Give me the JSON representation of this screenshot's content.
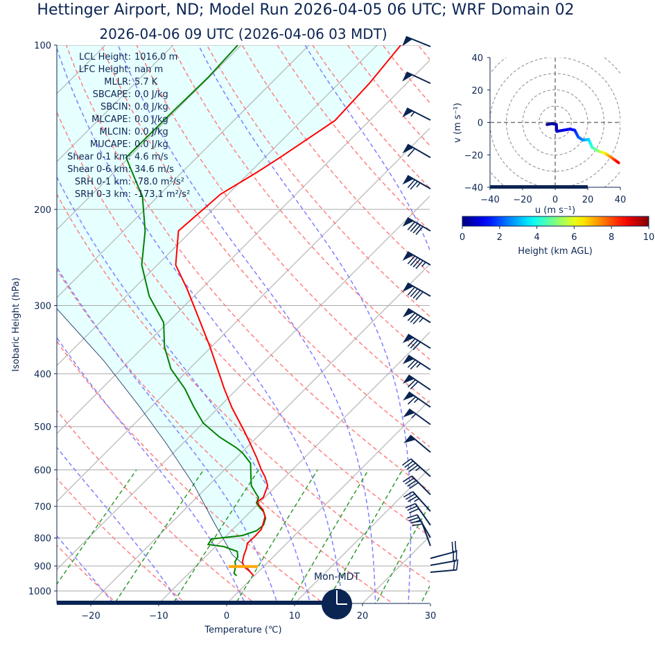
{
  "title": "Hettinger Airport, ND; Model Run 2026-04-05 06 UTC; WRF Domain 02",
  "subtitle": "2026-04-06 09 UTC  (2026-04-06 03 MDT)",
  "parameters": [
    {
      "label": "LCL Height:",
      "value": "1016.0 m"
    },
    {
      "label": "LFC Height:",
      "value": "nan m"
    },
    {
      "label": "MLLR:",
      "value": "5.7 K"
    },
    {
      "label": "SBCAPE:",
      "value": "0.0 J/kg"
    },
    {
      "label": "SBCIN:",
      "value": "0.0 J/kg"
    },
    {
      "label": "MLCAPE:",
      "value": "0.0 J/kg"
    },
    {
      "label": "MLCIN:",
      "value": "0.0 J/kg"
    },
    {
      "label": "MUCAPE:",
      "value": "0.0 J/kg"
    },
    {
      "label": "Shear 0-1 km:",
      "value": "4.6 m/s"
    },
    {
      "label": "Shear 0-6 km:",
      "value": "34.6 m/s"
    },
    {
      "label": "SRH 0-1 km:",
      "value": "-78.0 m²/s²"
    },
    {
      "label": "SRH 0-3 km:",
      "value": "-173.1 m²/s²"
    }
  ],
  "timeline": {
    "clock_label": "Mon-MDT",
    "clock_hour": 3,
    "progress": 0.75
  },
  "colors": {
    "text": "#0b2552",
    "temperature": "#ff0000",
    "dewpoint": "#008000",
    "parcel": "#0b2552",
    "cin_fill": "#e6ffff",
    "lcl_marker": "#ffa500",
    "dry_adiabat": "#ff7f7f",
    "moist_adiabat": "#7f7fff",
    "mixing_ratio": "#2e9a2e",
    "grid": "#aaaaaa"
  },
  "chart_data": [
    {
      "type": "skewt",
      "xlabel": "Temperature (℃)",
      "ylabel": "Isobaric Height (hPa)",
      "xlim": [
        -25,
        30
      ],
      "ylim": [
        1055,
        100
      ],
      "xticks": [
        "−20",
        "−10",
        "0",
        "10",
        "20",
        "30"
      ],
      "xtick_values": [
        -20,
        -10,
        0,
        10,
        20,
        30
      ],
      "yticks": [
        100,
        200,
        300,
        400,
        500,
        600,
        700,
        800,
        900,
        1000
      ],
      "temperature": {
        "pressure": [
          937.7,
          921.0,
          902.4,
          884.2,
          858.7,
          838.9,
          817.5,
          793.9,
          771.0,
          748.8,
          731.4,
          710.3,
          694.0,
          685.9,
          674.0,
          641.2,
          618.9,
          599.3,
          570.2,
          533.2,
          507.3,
          461.8,
          425.6,
          357.1,
          317.6,
          280.2,
          252.8,
          219.0,
          187.6,
          171.3,
          160.2,
          137.5,
          117.5,
          100
        ],
        "values": [
          -0.1,
          -1.3,
          -2.9,
          -3.8,
          -4.6,
          -5.1,
          -5.8,
          -5.7,
          -5.8,
          -6.5,
          -7.1,
          -8.4,
          -9.9,
          -10.4,
          -10.2,
          -11.3,
          -12.9,
          -14.6,
          -17.0,
          -20.4,
          -23.0,
          -28.0,
          -32.0,
          -40.2,
          -45.9,
          -52.0,
          -57.3,
          -61.9,
          -61.1,
          -59.0,
          -57.7,
          -55.1,
          -55.5,
          -56.5
        ]
      },
      "dewpoint": {
        "pressure": [
          937.7,
          929.3,
          915.9,
          897.4,
          884.2,
          866.3,
          846.3,
          829.2,
          822.0,
          803.0,
          791.5,
          775.5,
          757.6,
          735.8,
          716.5,
          704.0,
          689.9,
          674.0,
          660.1,
          641.2,
          617.1,
          583.6,
          558.6,
          545.8,
          522.6,
          492.5,
          460.5,
          425.6,
          392.0,
          357.1,
          322.3,
          288.4,
          252.8,
          219.0,
          189.2,
          182.2,
          160.7,
          132.1,
          114.7,
          100
        ],
        "values": [
          -2.6,
          -3.3,
          -3.7,
          -4.3,
          -4.9,
          -5.2,
          -6.1,
          -8.8,
          -11.4,
          -11.7,
          -7.7,
          -6.3,
          -6.1,
          -6.8,
          -8.0,
          -9.2,
          -10.4,
          -10.9,
          -12.1,
          -13.7,
          -15.1,
          -17.1,
          -19.8,
          -21.6,
          -25.5,
          -30.0,
          -33.7,
          -37.8,
          -42.7,
          -46.9,
          -50.6,
          -56.6,
          -62.3,
          -66.8,
          -72.3,
          -74.2,
          -80.4,
          -80.3,
          -80.1,
          -80.5
        ]
      },
      "parcel": {
        "pressure": [
          937.7,
          910.9,
          858.7,
          753.0,
          641.2,
          537.9,
          457.8,
          378.6,
          303.9
        ],
        "values": [
          -0.1,
          -1.9,
          -6.3,
          -13.5,
          -22.1,
          -32.3,
          -42.0,
          -53.8,
          -68.4
        ]
      },
      "lcl_marker_pressure": 902,
      "wind_barbs": {
        "units": "kt",
        "pressure": [
          100.6,
          117.5,
          137.2,
          160.7,
          183.3,
          219.0,
          252.8,
          288.4,
          322.3,
          359.2,
          393.2,
          428.1,
          460.5,
          495.5,
          557.0,
          617.1,
          666.0,
          714.4,
          757.6,
          798.4,
          826.8,
          871.5,
          897.4,
          924.0
        ],
        "speed": [
          50,
          50,
          55,
          60,
          75,
          90,
          95,
          90,
          85,
          80,
          75,
          70,
          65,
          55,
          50,
          45,
          40,
          35,
          30,
          25,
          20,
          20,
          20,
          20
        ],
        "direction": [
          292,
          295,
          297,
          300,
          300,
          300,
          300,
          300,
          302,
          302,
          303,
          304,
          305,
          306,
          310,
          312,
          315,
          318,
          325,
          330,
          340,
          75,
          80,
          85
        ]
      },
      "reference_lines": {
        "isotherms_c": [
          -100,
          -90,
          -80,
          -70,
          -60,
          -50,
          -40,
          -30,
          -20,
          -10,
          0,
          10,
          20,
          30
        ],
        "dry_adiabats_c": [
          -40,
          -30,
          -20,
          -10,
          0,
          10,
          20,
          30,
          40,
          50,
          60,
          70,
          80,
          90,
          100,
          110,
          120,
          130,
          140,
          150,
          160,
          170,
          180,
          190,
          200
        ],
        "moist_adiabats_c": [
          -30,
          -20,
          -10,
          0,
          5,
          10,
          15,
          20,
          25,
          30,
          35
        ],
        "mixing_ratios": [
          0.0004,
          0.001,
          0.002,
          0.004,
          0.007,
          0.01,
          0.016,
          0.024,
          0.032
        ],
        "mixing_top_hpa": 600
      }
    },
    {
      "type": "hodograph",
      "xlabel": "u (m s⁻¹)",
      "ylabel": "v (m s⁻¹)",
      "xlim": [
        -40,
        40
      ],
      "ylim": [
        -40,
        40
      ],
      "ticks": [
        -40,
        -20,
        0,
        20,
        40
      ],
      "tick_labels": [
        "−40",
        "−20",
        "0",
        "20",
        "40"
      ],
      "rings": [
        10,
        20,
        30,
        40
      ],
      "u": [
        -5,
        -2.1,
        0.7,
        1,
        5,
        9.2,
        12,
        14.2,
        17,
        20.5,
        22.7,
        26.2,
        30.5,
        34.7,
        39
      ],
      "v": [
        -1.3,
        -0.7,
        -1.3,
        -5.5,
        -4.8,
        -4.1,
        -4.8,
        -9.1,
        -10.9,
        -10.5,
        -15.4,
        -17.6,
        -19,
        -21.8,
        -24.9
      ],
      "height_km": [
        0,
        0.2,
        0.4,
        0.6,
        0.9,
        1.2,
        1.5,
        2,
        2.6,
        3.2,
        4.2,
        5,
        6.3,
        7.5,
        9
      ],
      "colorbar": {
        "label": "Height (km AGL)",
        "range": [
          0,
          10
        ],
        "ticks": [
          "0",
          "2",
          "4",
          "6",
          "8",
          "10"
        ],
        "cmap": "jet"
      }
    }
  ]
}
